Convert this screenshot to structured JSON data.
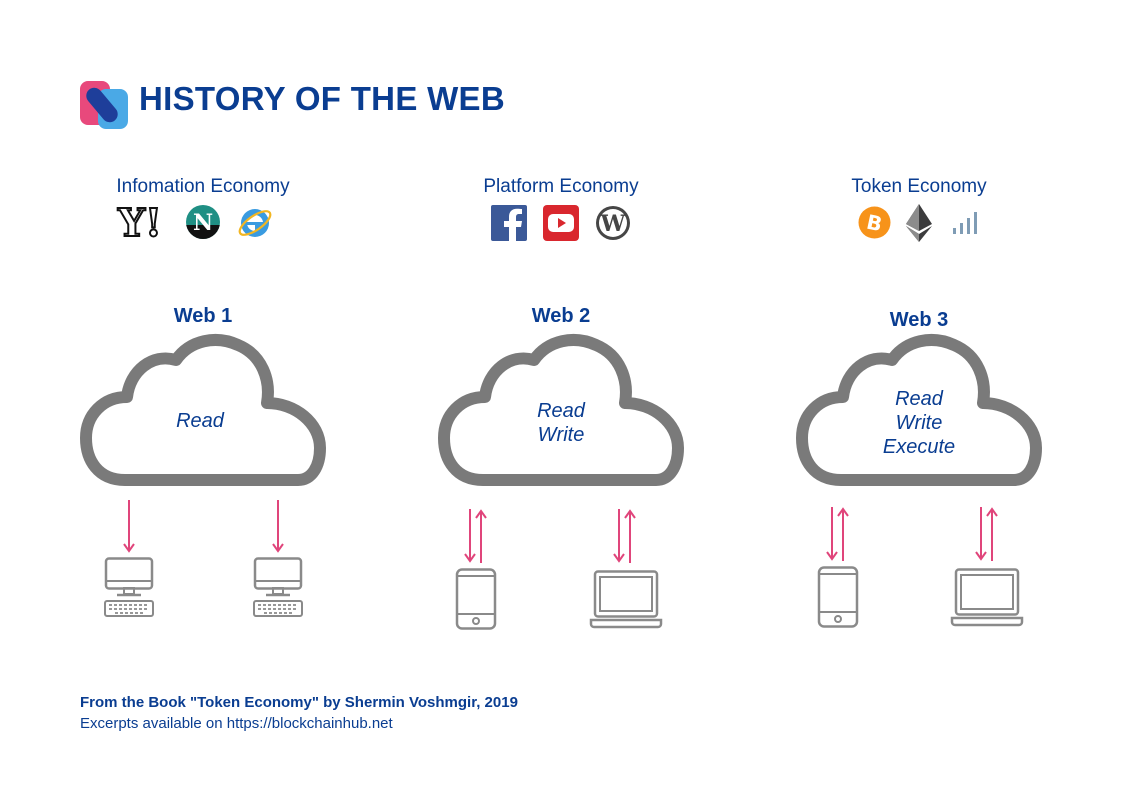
{
  "header": {
    "title": "HISTORY OF THE WEB"
  },
  "columns": [
    {
      "economy": "Infomation Economy",
      "web": "Web 1",
      "capabilities": [
        "Read"
      ],
      "icons": [
        "yahoo-icon",
        "netscape-icon",
        "internet-explorer-icon"
      ],
      "devices": [
        "desktop-computer-icon",
        "desktop-computer-icon"
      ]
    },
    {
      "economy": "Platform Economy",
      "web": "Web 2",
      "capabilities": [
        "Read",
        "Write"
      ],
      "icons": [
        "facebook-icon",
        "youtube-icon",
        "wordpress-icon"
      ],
      "devices": [
        "smartphone-icon",
        "laptop-icon"
      ]
    },
    {
      "economy": "Token Economy",
      "web": "Web 3",
      "capabilities": [
        "Read",
        "Write",
        "Execute"
      ],
      "icons": [
        "bitcoin-icon",
        "ethereum-icon",
        "signal-bars-icon"
      ],
      "devices": [
        "smartphone-icon",
        "laptop-icon"
      ]
    }
  ],
  "footer": {
    "source": "From the Book \"Token Economy\" by Shermin Voshmgir, 2019",
    "excerpts": "Excerpts available on https://blockchainhub.net"
  },
  "colors": {
    "primary": "#0a3d91",
    "cloud": "#7a7a7a",
    "arrow": "#e0457b",
    "device": "#8a8a8a"
  }
}
